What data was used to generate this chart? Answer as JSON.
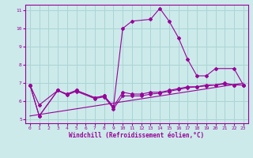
{
  "background_color": "#cceaea",
  "grid_color": "#aad4d4",
  "line_color": "#990099",
  "xlabel": "Windchill (Refroidissement éolien,°C)",
  "xlim": [
    -0.5,
    23.5
  ],
  "ylim": [
    4.8,
    11.3
  ],
  "yticks": [
    5,
    6,
    7,
    8,
    9,
    10,
    11
  ],
  "xticks": [
    0,
    1,
    2,
    3,
    4,
    5,
    6,
    7,
    8,
    9,
    10,
    11,
    12,
    13,
    14,
    15,
    16,
    17,
    18,
    19,
    20,
    21,
    22,
    23
  ],
  "line1_x": [
    0,
    1,
    3,
    4,
    5,
    7,
    8,
    9,
    10,
    11,
    12,
    13,
    14,
    15,
    16,
    17,
    18,
    19,
    20,
    21,
    22,
    23
  ],
  "line1_y": [
    6.9,
    5.8,
    6.6,
    6.4,
    6.6,
    6.2,
    6.3,
    5.7,
    6.5,
    6.4,
    6.4,
    6.5,
    6.5,
    6.6,
    6.7,
    6.8,
    6.8,
    6.9,
    6.9,
    7.0,
    6.9,
    6.9
  ],
  "line3_x": [
    0,
    1,
    3,
    4,
    5,
    7,
    8,
    9,
    10,
    11,
    12,
    13,
    14,
    15,
    16,
    17,
    18,
    19,
    20,
    21,
    22,
    23
  ],
  "line3_y": [
    6.9,
    5.2,
    6.6,
    6.35,
    6.55,
    6.15,
    6.25,
    5.6,
    6.3,
    6.3,
    6.3,
    6.4,
    6.45,
    6.55,
    6.65,
    6.75,
    6.8,
    6.85,
    6.9,
    6.95,
    6.9,
    6.9
  ],
  "line4_x": [
    0,
    1,
    3,
    4,
    5,
    7,
    8,
    9,
    10,
    11,
    13,
    14,
    15,
    16,
    17,
    18,
    19,
    20,
    22,
    23
  ],
  "line4_y": [
    6.9,
    5.2,
    6.6,
    6.4,
    6.6,
    6.2,
    6.3,
    5.7,
    10.0,
    10.4,
    10.5,
    11.1,
    10.4,
    9.5,
    8.3,
    7.4,
    7.4,
    7.8,
    7.8,
    6.9
  ]
}
